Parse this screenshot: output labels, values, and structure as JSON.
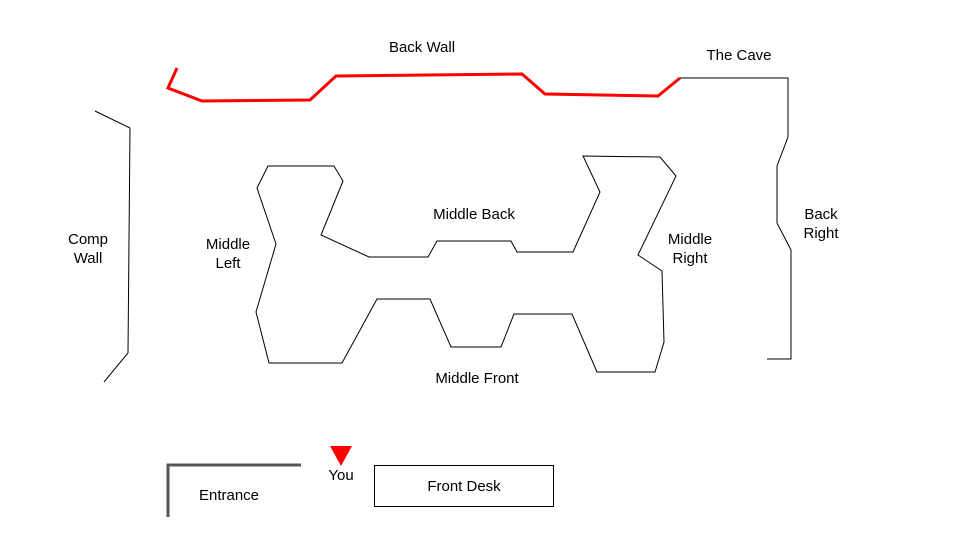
{
  "labels": {
    "back_wall": "Back Wall",
    "the_cave": "The Cave",
    "back_right": [
      "Back",
      "Right"
    ],
    "comp_wall": [
      "Comp",
      "Wall"
    ],
    "middle_left": [
      "Middle",
      "Left"
    ],
    "middle_back": "Middle Back",
    "middle_right": [
      "Middle",
      "Right"
    ],
    "middle_front": "Middle Front",
    "you": "You",
    "entrance": "Entrance",
    "front_desk": "Front Desk"
  },
  "colors": {
    "highlight": "#ff0000",
    "outline": "#000000",
    "entrance_wall": "#555555",
    "background": "#ffffff"
  },
  "markers": {
    "you_marker_icon": "down-triangle-icon"
  }
}
